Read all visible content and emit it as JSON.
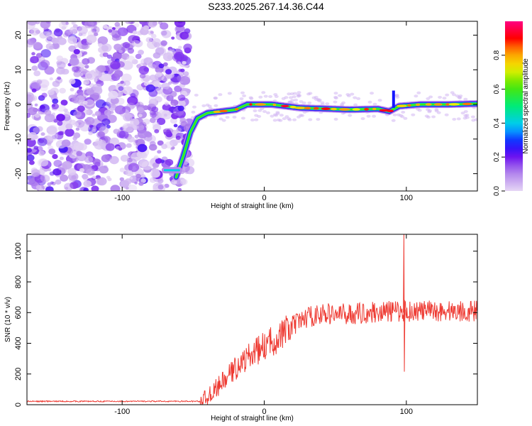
{
  "title": "S233.2025.267.14.36.C44",
  "chart_data": [
    {
      "type": "heatmap",
      "xlabel": "Height of straight line (km)",
      "ylabel": "Frequency (Hz)",
      "xlim": [
        -167,
        150
      ],
      "ylim": [
        -25,
        24
      ],
      "xticks": [
        -100,
        0,
        100
      ],
      "yticks": [
        -20,
        -10,
        0,
        10,
        20
      ],
      "colorbar": {
        "label": "Normalized spectral amplitude",
        "range": [
          0,
          1
        ],
        "ticks": [
          0.0,
          0.2,
          0.4,
          0.6,
          0.8
        ]
      },
      "ridge": [
        {
          "x": -62,
          "y": -21
        },
        {
          "x": -57,
          "y": -15
        },
        {
          "x": -52,
          "y": -8
        },
        {
          "x": -47,
          "y": -4
        },
        {
          "x": -40,
          "y": -2.5
        },
        {
          "x": -30,
          "y": -2
        },
        {
          "x": -20,
          "y": -1.5
        },
        {
          "x": -12,
          "y": 0
        },
        {
          "x": -5,
          "y": 0
        },
        {
          "x": 5,
          "y": 0
        },
        {
          "x": 15,
          "y": -0.5
        },
        {
          "x": 25,
          "y": -1
        },
        {
          "x": 40,
          "y": -1.2
        },
        {
          "x": 60,
          "y": -1.5
        },
        {
          "x": 80,
          "y": -1.3
        },
        {
          "x": 88,
          "y": -2
        },
        {
          "x": 95,
          "y": -0.5
        },
        {
          "x": 110,
          "y": 0
        },
        {
          "x": 130,
          "y": 0
        },
        {
          "x": 150,
          "y": 0.2
        }
      ],
      "feature_segment": {
        "x": [
          -70,
          -60
        ],
        "y": -19
      }
    },
    {
      "type": "line",
      "xlabel": "Height of straight line (km)",
      "ylabel": "SNR (10 * v/v)",
      "xlim": [
        -167,
        150
      ],
      "ylim": [
        0,
        1110
      ],
      "xticks": [
        -100,
        0,
        100
      ],
      "yticks": [
        0,
        200,
        400,
        600,
        800,
        1000
      ],
      "color": "#ee3b33",
      "trend": {
        "x": [
          -167,
          -45,
          -40,
          -30,
          -20,
          -10,
          0,
          10,
          20,
          30,
          40,
          60,
          80,
          100,
          120,
          150
        ],
        "y": [
          22,
          22,
          50,
          140,
          240,
          320,
          380,
          440,
          510,
          570,
          590,
          590,
          605,
          610,
          610,
          610
        ]
      },
      "spike": {
        "x": 98.5,
        "high": 1110,
        "low": 215
      }
    }
  ]
}
